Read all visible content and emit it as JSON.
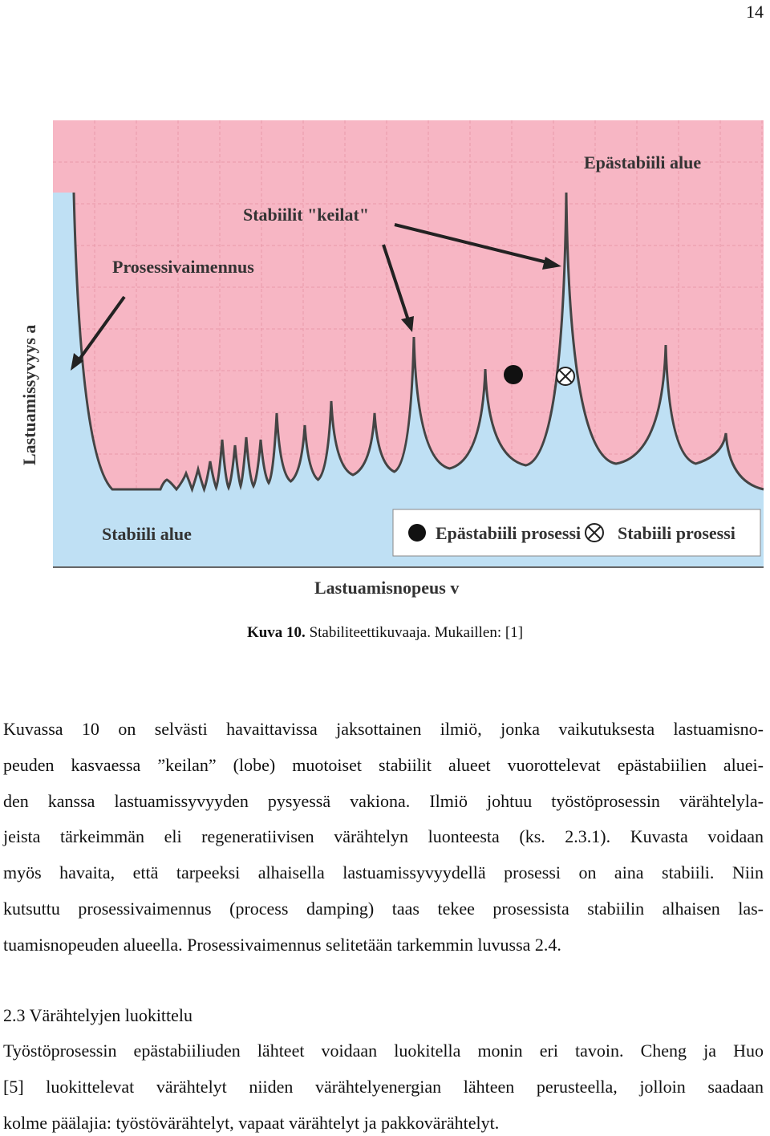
{
  "page_number": "14",
  "figure": {
    "region_unstable": "Epästabiili alue",
    "lobes": "Stabiilit \"keilat\"",
    "damping": "Prosessivaimennus",
    "y_axis_label": "Lastuamissyvyys  a",
    "region_stable": "Stabiili alue",
    "legend_unstable": "Epästabiili prosessi",
    "legend_stable": "Stabiili prosessi",
    "x_axis_label": "Lastuamisnopeus  v"
  },
  "caption": {
    "label": "Kuva 10.",
    "text": "Stabiliteettikuvaaja. Mukaillen: [1]"
  },
  "paragraph_1": [
    "Kuvassa 10 on selvästi havaittavissa jaksottainen ilmiö, jonka vaikutuksesta lastuamisno-",
    "peuden kasvaessa ”keilan” (lobe) muotoiset stabiilit alueet vuorottelevat epästabiilien aluei-",
    "den kanssa lastuamissyvyyden pysyessä vakiona. Ilmiö johtuu työstöprosessin värähtelyla-",
    "jeista tärkeimmän eli regeneratiivisen värähtelyn luonteesta (ks. 2.3.1). Kuvasta voidaan",
    "myös havaita, että tarpeeksi alhaisella lastuamissyvyydellä prosessi on aina stabiili. Niin",
    "kutsuttu prosessivaimennus (process damping) taas tekee prosessista stabiilin alhaisen las-",
    "tuamisnopeuden alueella. Prosessivaimennus selitetään tarkemmin luvussa 2.4."
  ],
  "heading": "2.3 Värähtelyjen luokittelu",
  "paragraph_2": [
    "Työstöprosessin epästabiiliuden lähteet voidaan luokitella monin eri tavoin. Cheng ja Huo",
    "[5] luokittelevat värähtelyt niiden värähtelyenergian lähteen perusteella, jolloin saadaan",
    "kolme päälajia: työstövärähtelyt, vapaat värähtelyt ja pakkovärähtelyt."
  ]
}
